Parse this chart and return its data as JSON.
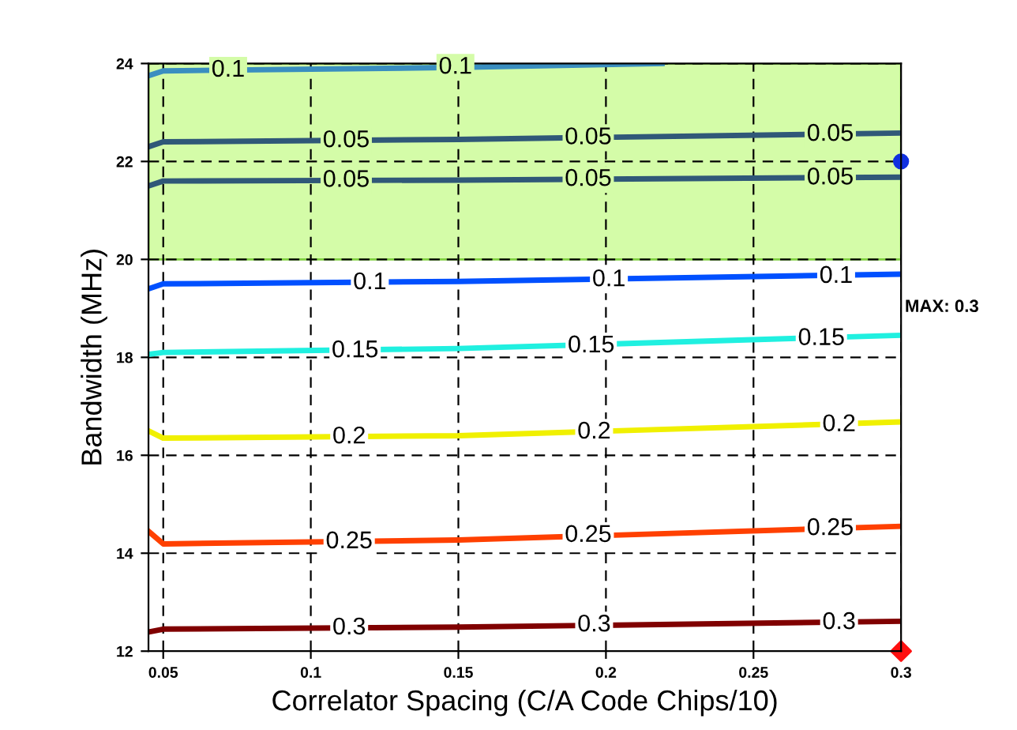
{
  "chart_data": {
    "type": "line",
    "xlabel": "Correlator Spacing (C/A Code Chips/10)",
    "ylabel": "Bandwidth (MHz)",
    "xlim": [
      0.045,
      0.3
    ],
    "ylim": [
      12,
      24
    ],
    "xticks": [
      0.05,
      0.1,
      0.15,
      0.2,
      0.25,
      0.3
    ],
    "yticks": [
      12,
      14,
      16,
      18,
      20,
      22,
      24
    ],
    "grid": true,
    "line_style": "solid",
    "marker": "none",
    "bands": [
      {
        "axis": "y",
        "from": 20,
        "to": 24,
        "color": "#d4fca8"
      }
    ],
    "series": [
      {
        "color": "#3a8ec0",
        "x": [
          0.045,
          0.05,
          0.15,
          0.219
        ],
        "values": [
          23.75,
          23.85,
          23.92,
          24.0
        ]
      },
      {
        "color": "#305878",
        "x": [
          0.045,
          0.05,
          0.15,
          0.3
        ],
        "values": [
          22.3,
          22.4,
          22.45,
          22.58
        ]
      },
      {
        "color": "#305878",
        "x": [
          0.045,
          0.05,
          0.15,
          0.3
        ],
        "values": [
          21.5,
          21.6,
          21.62,
          21.68
        ]
      },
      {
        "color": "#0050ff",
        "x": [
          0.045,
          0.05,
          0.15,
          0.3
        ],
        "values": [
          19.4,
          19.5,
          19.55,
          19.7
        ]
      },
      {
        "color": "#20f0e0",
        "x": [
          0.045,
          0.05,
          0.15,
          0.3
        ],
        "values": [
          18.06,
          18.1,
          18.18,
          18.45
        ]
      },
      {
        "color": "#f0f000",
        "x": [
          0.045,
          0.05,
          0.15,
          0.3
        ],
        "values": [
          16.5,
          16.35,
          16.4,
          16.68
        ]
      },
      {
        "color": "#ff4000",
        "x": [
          0.045,
          0.05,
          0.15,
          0.3
        ],
        "values": [
          14.45,
          14.19,
          14.27,
          14.55
        ]
      },
      {
        "color": "#800000",
        "x": [
          0.045,
          0.05,
          0.15,
          0.3
        ],
        "values": [
          12.39,
          12.45,
          12.49,
          12.61
        ]
      },
      {
        "type": "scatter",
        "marker": "circle",
        "color": "#1030e0",
        "x": [
          0.3
        ],
        "values": [
          22
        ]
      },
      {
        "type": "scatter",
        "marker": "diamond",
        "color": "#ff1010",
        "x": [
          0.3
        ],
        "values": [
          12
        ]
      }
    ],
    "annotations": [
      {
        "text": "0.1",
        "x": 0.072,
        "y": 23.86
      },
      {
        "text": "0.1",
        "x": 0.149,
        "y": 23.92
      },
      {
        "text": "0.05",
        "x": 0.112,
        "y": 22.42
      },
      {
        "text": "0.05",
        "x": 0.194,
        "y": 22.48
      },
      {
        "text": "0.05",
        "x": 0.276,
        "y": 22.55
      },
      {
        "text": "0.05",
        "x": 0.112,
        "y": 21.61
      },
      {
        "text": "0.05",
        "x": 0.194,
        "y": 21.63
      },
      {
        "text": "0.05",
        "x": 0.276,
        "y": 21.66
      },
      {
        "text": "0.1",
        "x": 0.12,
        "y": 19.52
      },
      {
        "text": "0.1",
        "x": 0.201,
        "y": 19.58
      },
      {
        "text": "0.1",
        "x": 0.278,
        "y": 19.65
      },
      {
        "text": "0.15",
        "x": 0.115,
        "y": 18.13
      },
      {
        "text": "0.15",
        "x": 0.195,
        "y": 18.23
      },
      {
        "text": "0.15",
        "x": 0.273,
        "y": 18.38
      },
      {
        "text": "0.2",
        "x": 0.113,
        "y": 16.37
      },
      {
        "text": "0.2",
        "x": 0.196,
        "y": 16.47
      },
      {
        "text": "0.2",
        "x": 0.279,
        "y": 16.62
      },
      {
        "text": "0.25",
        "x": 0.113,
        "y": 14.23
      },
      {
        "text": "0.25",
        "x": 0.194,
        "y": 14.36
      },
      {
        "text": "0.25",
        "x": 0.276,
        "y": 14.5
      },
      {
        "text": "0.3",
        "x": 0.113,
        "y": 12.47
      },
      {
        "text": "0.3",
        "x": 0.196,
        "y": 12.53
      },
      {
        "text": "0.3",
        "x": 0.279,
        "y": 12.58
      },
      "MAX: 0.3"
    ]
  }
}
